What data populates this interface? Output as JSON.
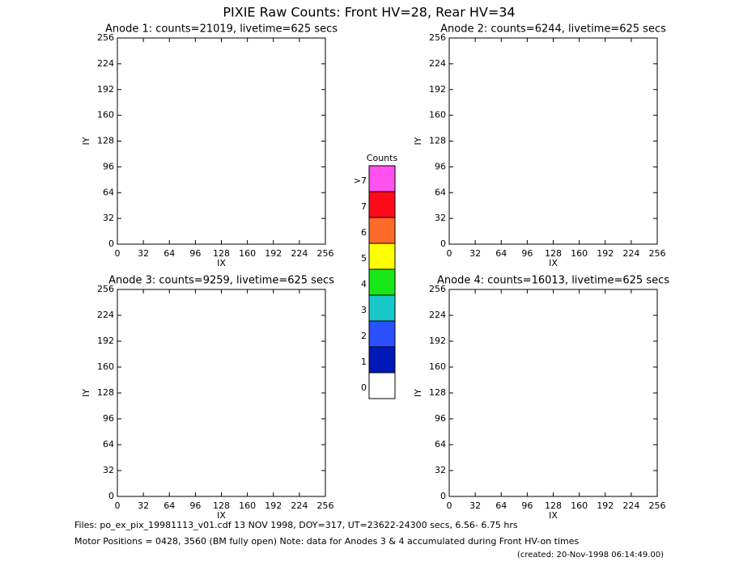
{
  "title": "PIXIE Raw Counts:  Front HV=28, Rear HV=34",
  "chart_data": [
    {
      "type": "image",
      "title": "Anode 1: counts=21019, livetime=625 secs",
      "xlabel": "IX",
      "ylabel": "IY",
      "xlim": [
        0,
        256
      ],
      "ylim": [
        0,
        256
      ],
      "xticks": [
        0,
        32,
        64,
        96,
        128,
        160,
        192,
        224,
        256
      ],
      "yticks": [
        0,
        32,
        64,
        96,
        128,
        160,
        192,
        224,
        256
      ]
    },
    {
      "type": "image",
      "title": "Anode 2: counts=6244, livetime=625 secs",
      "xlabel": "IX",
      "ylabel": "IY",
      "xlim": [
        0,
        256
      ],
      "ylim": [
        0,
        256
      ],
      "xticks": [
        0,
        32,
        64,
        96,
        128,
        160,
        192,
        224,
        256
      ],
      "yticks": [
        0,
        32,
        64,
        96,
        128,
        160,
        192,
        224,
        256
      ]
    },
    {
      "type": "image",
      "title": "Anode 3: counts=9259, livetime=625 secs",
      "xlabel": "IX",
      "ylabel": "IY",
      "xlim": [
        0,
        256
      ],
      "ylim": [
        0,
        256
      ],
      "xticks": [
        0,
        32,
        64,
        96,
        128,
        160,
        192,
        224,
        256
      ],
      "yticks": [
        0,
        32,
        64,
        96,
        128,
        160,
        192,
        224,
        256
      ]
    },
    {
      "type": "image",
      "title": "Anode 4: counts=16013, livetime=625 secs",
      "xlabel": "IX",
      "ylabel": "IY",
      "xlim": [
        0,
        256
      ],
      "ylim": [
        0,
        256
      ],
      "xticks": [
        0,
        32,
        64,
        96,
        128,
        160,
        192,
        224,
        256
      ],
      "yticks": [
        0,
        32,
        64,
        96,
        128,
        160,
        192,
        224,
        256
      ]
    }
  ],
  "colorbar": {
    "title": "Counts",
    "categories": [
      "0",
      "1",
      "2",
      "3",
      "4",
      "5",
      "6",
      "7",
      ">7"
    ],
    "colors": [
      "#ffffff",
      "#0018b8",
      "#2a50ff",
      "#18c8c8",
      "#18e818",
      "#ffff00",
      "#ff6a28",
      "#ff0a18",
      "#ff50f0"
    ]
  },
  "footer": {
    "files": "Files: po_ex_pix_19981113_v01.cdf    13 NOV 1998, DOY=317, UT=23622-24300 secs,  6.56- 6.75 hrs",
    "motor": "Motor Positions = 0428, 3560 (BM fully open)    Note: data for Anodes 3 & 4 accumulated during Front HV-on times",
    "created": "(created: 20-Nov-1998 06:14:49.00)"
  }
}
